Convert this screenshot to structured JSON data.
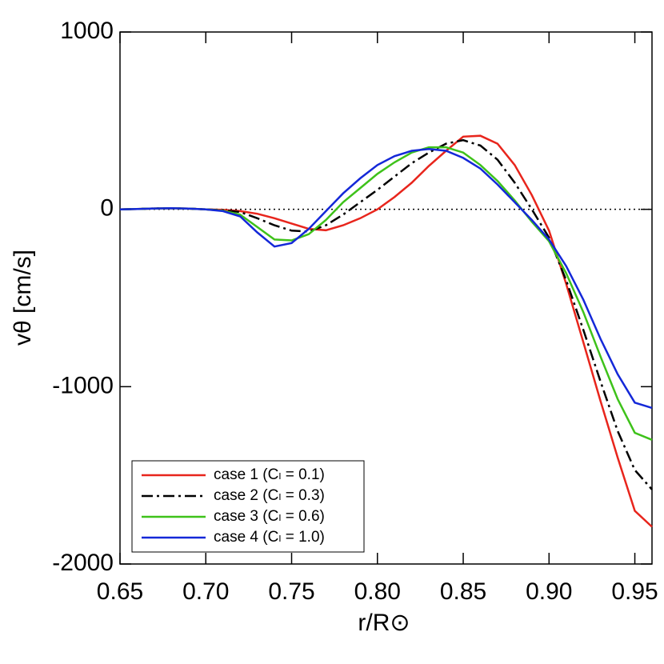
{
  "chart_data": {
    "type": "line",
    "xlabel": "r/R⊙",
    "ylabel": "vθ [cm/s]",
    "x": [
      0.65,
      0.66,
      0.67,
      0.68,
      0.69,
      0.7,
      0.71,
      0.72,
      0.73,
      0.74,
      0.75,
      0.76,
      0.77,
      0.78,
      0.79,
      0.8,
      0.81,
      0.82,
      0.83,
      0.84,
      0.85,
      0.86,
      0.87,
      0.88,
      0.89,
      0.9,
      0.91,
      0.92,
      0.93,
      0.94,
      0.95,
      0.96
    ],
    "series": [
      {
        "name": "case 1 (Cₗ = 0.1)",
        "color": "#e8251c",
        "style": "solid",
        "values": [
          0,
          2,
          5,
          6,
          4,
          0,
          -3,
          -10,
          -25,
          -50,
          -80,
          -110,
          -118,
          -90,
          -50,
          0,
          70,
          150,
          245,
          330,
          410,
          415,
          370,
          250,
          80,
          -120,
          -420,
          -750,
          -1080,
          -1400,
          -1700,
          -1790
        ]
      },
      {
        "name": "case 2 (Cₗ = 0.3)",
        "color": "#000000",
        "style": "dash-dot",
        "values": [
          0,
          2,
          5,
          6,
          4,
          0,
          -5,
          -15,
          -50,
          -90,
          -120,
          -125,
          -90,
          -30,
          40,
          110,
          185,
          260,
          320,
          370,
          390,
          360,
          280,
          150,
          0,
          -160,
          -400,
          -680,
          -970,
          -1250,
          -1470,
          -1580
        ]
      },
      {
        "name": "case 3 (Cₗ = 0.6)",
        "color": "#3ec21a",
        "style": "solid",
        "values": [
          0,
          2,
          5,
          6,
          4,
          0,
          -8,
          -30,
          -100,
          -170,
          -175,
          -140,
          -60,
          40,
          120,
          200,
          265,
          320,
          350,
          350,
          320,
          250,
          160,
          50,
          -70,
          -180,
          -360,
          -580,
          -830,
          -1070,
          -1260,
          -1300
        ]
      },
      {
        "name": "case 4 (Cₗ = 1.0)",
        "color": "#1428d8",
        "style": "solid",
        "values": [
          0,
          2,
          5,
          6,
          4,
          0,
          -10,
          -40,
          -130,
          -210,
          -190,
          -110,
          -10,
          90,
          175,
          250,
          300,
          330,
          340,
          330,
          290,
          230,
          140,
          40,
          -60,
          -170,
          -320,
          -510,
          -730,
          -930,
          -1090,
          -1120
        ]
      }
    ],
    "reference_line": 0,
    "xlim": [
      0.65,
      0.96
    ],
    "ylim": [
      -2000,
      1000
    ],
    "xticks": [
      0.65,
      {
        "value": 0.7,
        "label": "0.70"
      },
      0.75,
      {
        "value": 0.8,
        "label": "0.80"
      },
      0.85,
      {
        "value": 0.9,
        "label": "0.90"
      },
      0.95
    ],
    "yticks": [
      -2000,
      -1000,
      0,
      1000
    ],
    "legend": "lower left"
  }
}
